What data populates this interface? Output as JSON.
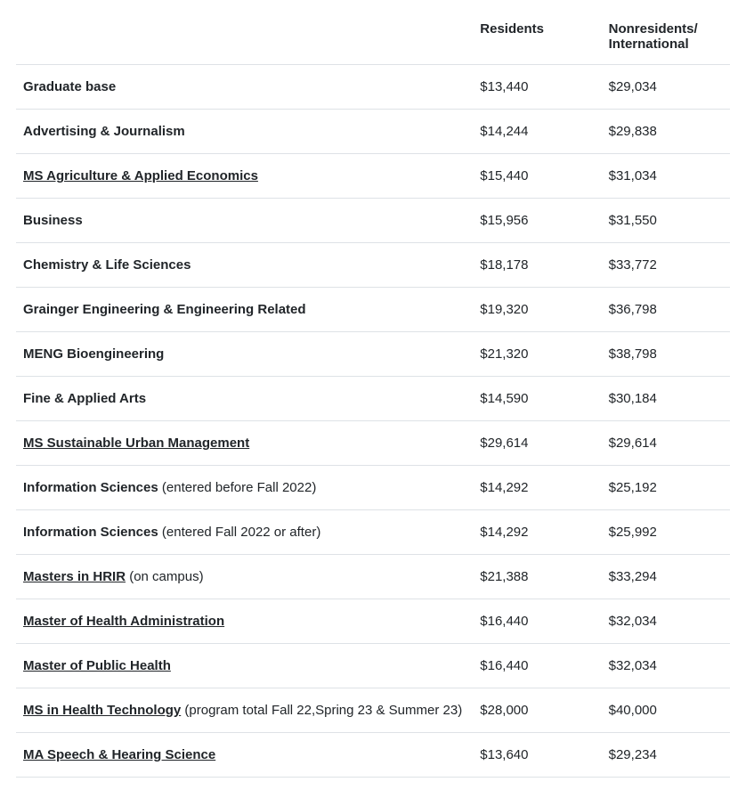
{
  "table": {
    "type": "table",
    "background_color": "#ffffff",
    "grid_color": "#dee2e6",
    "text_color": "#212529",
    "header_fontsize": 15,
    "body_fontsize": 15,
    "column_widths_pct": [
      64,
      18,
      18
    ],
    "columns": [
      "",
      "Residents",
      "Nonresidents/ International"
    ],
    "rows": [
      {
        "program": "Graduate base",
        "link": false,
        "note": "",
        "residents": "$13,440",
        "nonresidents": "$29,034"
      },
      {
        "program": "Advertising & Journalism",
        "link": false,
        "note": "",
        "residents": "$14,244",
        "nonresidents": "$29,838"
      },
      {
        "program": "MS Agriculture & Applied Economics",
        "link": true,
        "note": "",
        "residents": "$15,440",
        "nonresidents": "$31,034"
      },
      {
        "program": "Business",
        "link": false,
        "note": "",
        "residents": "$15,956",
        "nonresidents": "$31,550"
      },
      {
        "program": "Chemistry & Life Sciences",
        "link": false,
        "note": "",
        "residents": "$18,178",
        "nonresidents": "$33,772"
      },
      {
        "program": "Grainger Engineering & Engineering Related",
        "link": false,
        "note": "",
        "residents": "$19,320",
        "nonresidents": "$36,798"
      },
      {
        "program": "MENG Bioengineering",
        "link": false,
        "note": "",
        "residents": "$21,320",
        "nonresidents": "$38,798"
      },
      {
        "program": "Fine & Applied Arts",
        "link": false,
        "note": "",
        "residents": "$14,590",
        "nonresidents": "$30,184"
      },
      {
        "program": "MS Sustainable Urban Management",
        "link": true,
        "note": "",
        "residents": "$29,614",
        "nonresidents": "$29,614"
      },
      {
        "program": "Information Sciences",
        "link": false,
        "note": " (entered before Fall 2022)",
        "residents": "$14,292",
        "nonresidents": "$25,192"
      },
      {
        "program": "Information Sciences",
        "link": false,
        "note": " (entered Fall 2022 or after)",
        "residents": "$14,292",
        "nonresidents": "$25,992"
      },
      {
        "program": "Masters in HRIR",
        "link": true,
        "note": " (on campus)",
        "residents": "$21,388",
        "nonresidents": "$33,294"
      },
      {
        "program": "Master of Health Administration",
        "link": true,
        "note": "",
        "residents": "$16,440",
        "nonresidents": "$32,034"
      },
      {
        "program": "Master of Public Health",
        "link": true,
        "note": "",
        "residents": "$16,440",
        "nonresidents": "$32,034"
      },
      {
        "program": "MS in Health Technology",
        "link": true,
        "note": " (program total Fall 22,Spring 23 & Summer 23)",
        "residents": "$28,000",
        "nonresidents": "$40,000"
      },
      {
        "program": "MA Speech & Hearing Science",
        "link": true,
        "note": "",
        "residents": "$13,640",
        "nonresidents": "$29,234"
      }
    ]
  }
}
